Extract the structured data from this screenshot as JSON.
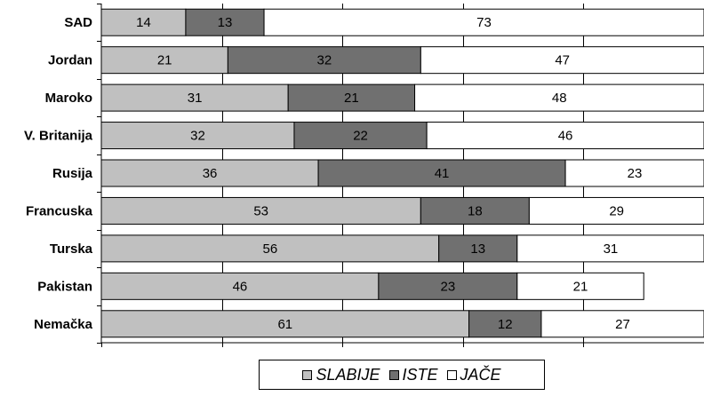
{
  "chart_data": {
    "type": "bar",
    "orientation": "horizontal",
    "stacked": true,
    "categories": [
      "SAD",
      "Jordan",
      "Maroko",
      "V. Britanija",
      "Rusija",
      "Francuska",
      "Turska",
      "Pakistan",
      "Nemačka"
    ],
    "series": [
      {
        "name": "SLABIJE",
        "color": "#c0c0c0",
        "values": [
          14,
          21,
          31,
          32,
          36,
          53,
          56,
          46,
          61
        ]
      },
      {
        "name": "ISTE",
        "color": "#707070",
        "values": [
          13,
          32,
          21,
          22,
          41,
          18,
          13,
          23,
          12
        ]
      },
      {
        "name": "JAČE",
        "color": "#ffffff",
        "values": [
          73,
          47,
          48,
          46,
          23,
          29,
          31,
          21,
          27
        ]
      }
    ],
    "xlim": [
      0,
      100
    ],
    "grid": true,
    "legend_position": "bottom"
  }
}
